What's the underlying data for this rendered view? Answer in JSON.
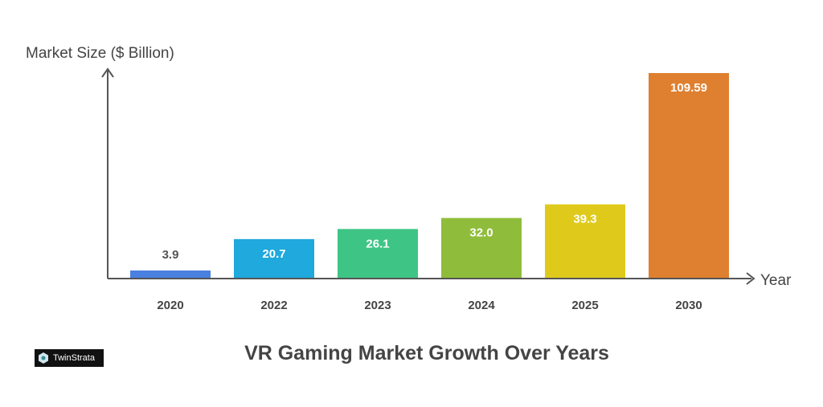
{
  "chart_data": {
    "type": "bar",
    "title": "VR Gaming Market Growth Over Years",
    "xlabel": "Year",
    "ylabel": "Market Size ($ Billion)",
    "categories": [
      "2020",
      "2022",
      "2023",
      "2024",
      "2025",
      "2030"
    ],
    "values": [
      3.9,
      20.7,
      26.1,
      32.0,
      39.3,
      109.59
    ],
    "value_labels": [
      "3.9",
      "20.7",
      "26.1",
      "32.0",
      "39.3",
      "109.59"
    ],
    "colors": [
      "#4a80e0",
      "#1fa9dc",
      "#3ec585",
      "#8fbd3b",
      "#dfca1c",
      "#df8030"
    ],
    "ylim": [
      0,
      110
    ],
    "grid": false
  },
  "branding": {
    "logo_text": "TwinStrata"
  }
}
